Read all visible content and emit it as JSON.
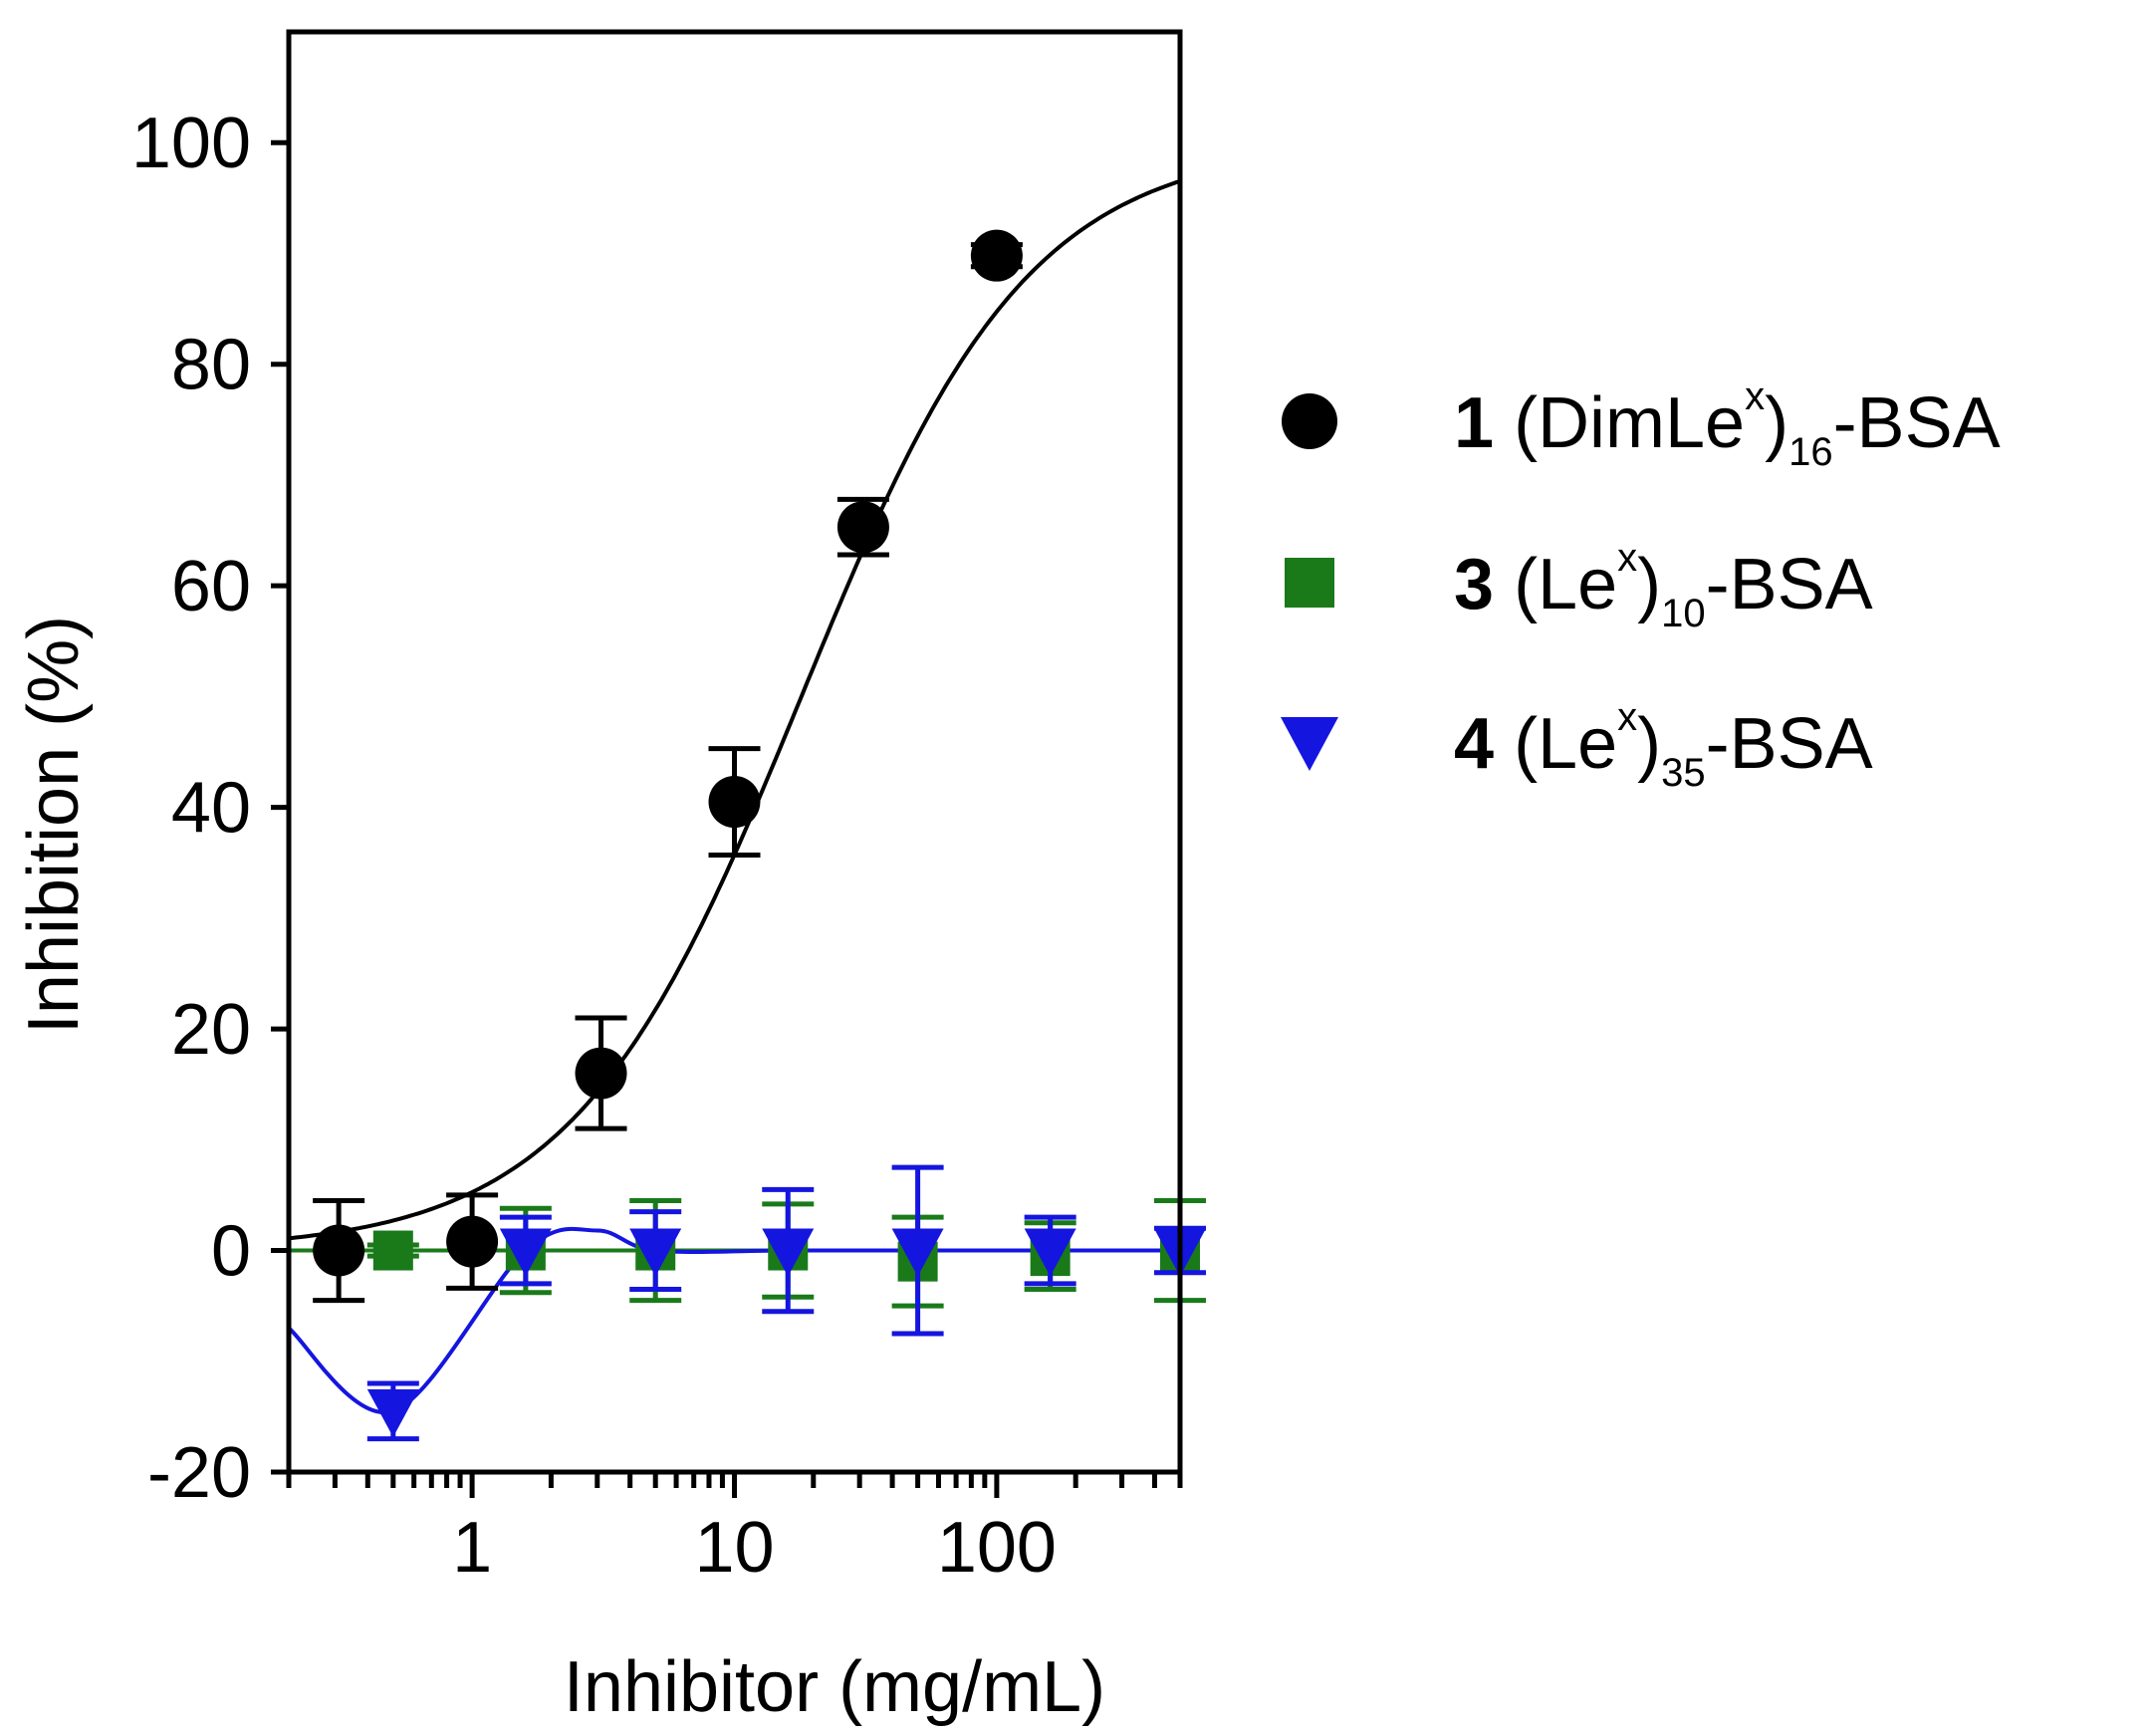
{
  "chart_data": {
    "type": "scatter",
    "title": "",
    "xlabel": "Inhibitor (mg/mL)",
    "ylabel": "Inhibition (%)",
    "xscale": "log",
    "xlim": [
      0.2,
      500
    ],
    "ylim": [
      -20,
      110
    ],
    "xticks": [
      1,
      10,
      100
    ],
    "xtick_labels": [
      "1",
      "10",
      "100"
    ],
    "yticks": [
      -20,
      0,
      20,
      40,
      60,
      80,
      100
    ],
    "ytick_labels": [
      "-20",
      "0",
      "20",
      "40",
      "60",
      "80",
      "100"
    ],
    "legend_position": "right",
    "series": [
      {
        "id": "s1",
        "name": "(DimLe^x)16-BSA",
        "legend": {
          "number": "1",
          "pre": "(DimLe",
          "sup": "x",
          "post": ")",
          "sub": "16",
          "suffix": "-BSA"
        },
        "color": "#000000",
        "marker": "circle",
        "x": [
          0.31,
          1.0,
          3.1,
          10,
          31,
          100
        ],
        "y": [
          0.0,
          0.8,
          16.0,
          40.5,
          65.3,
          89.8
        ],
        "err": [
          4.5,
          4.2,
          5.0,
          4.8,
          2.5,
          1.0
        ],
        "fit": {
          "model": "four-parameter logistic",
          "bottom": 0,
          "top": 100,
          "ec50": 18.0,
          "hill": 1.0
        }
      },
      {
        "id": "s3",
        "name": "(Le^x)10-BSA",
        "legend": {
          "number": "3",
          "pre": "(Le",
          "sup": "x",
          "post": ")",
          "sub": "10",
          "suffix": "-BSA"
        },
        "color": "#1a7a1a",
        "marker": "square",
        "x": [
          0.5,
          1.6,
          5,
          16,
          50,
          160,
          500
        ],
        "y": [
          0.0,
          0.0,
          0.0,
          0.0,
          -1.0,
          -0.5,
          0.0
        ],
        "err": [
          0.5,
          3.8,
          4.5,
          4.2,
          4.0,
          3.0,
          4.5
        ],
        "fit": {
          "model": "flat",
          "y": 0
        }
      },
      {
        "id": "s4",
        "name": "(Le^x)35-BSA",
        "legend": {
          "number": "4",
          "pre": "(Le",
          "sup": "x",
          "post": ")",
          "sub": "35",
          "suffix": "-BSA"
        },
        "color": "#1515e0",
        "marker": "triangle-down",
        "x": [
          0.5,
          1.6,
          5,
          16,
          50,
          160,
          500
        ],
        "y": [
          -14.5,
          0.0,
          0.0,
          0.0,
          0.0,
          0.0,
          0.0
        ],
        "err": [
          2.5,
          3.0,
          3.5,
          5.5,
          7.5,
          3.0,
          2.0
        ],
        "fit": {
          "model": "spline",
          "x": [
            0.2,
            0.5,
            1.6,
            3.0,
            5,
            16,
            50,
            160,
            500
          ],
          "y": [
            -7,
            -14.5,
            0.0,
            1.8,
            0.0,
            0.0,
            0.0,
            0.0,
            0.0
          ]
        }
      }
    ]
  }
}
